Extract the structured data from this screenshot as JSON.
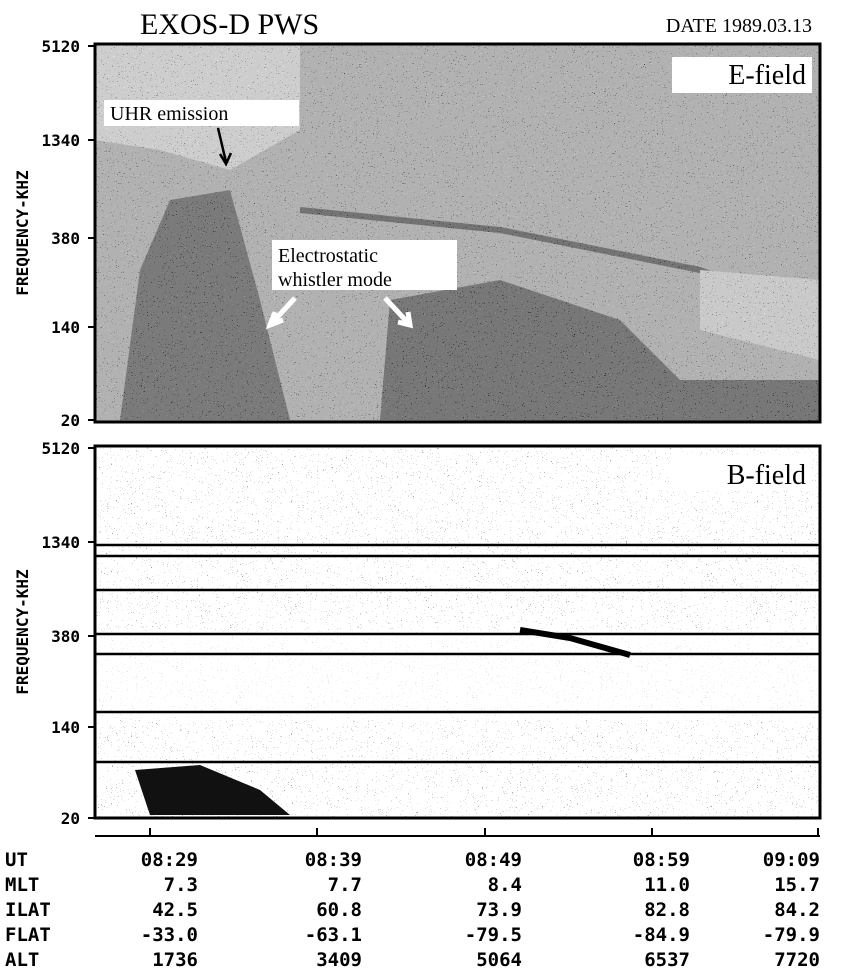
{
  "header": {
    "title": "EXOS-D  PWS",
    "date": "DATE 1989.03.13"
  },
  "panels": [
    {
      "label": "E-field",
      "axis_label": "FREQUENCY-KHZ",
      "ticks": [
        "5120",
        "1340",
        "380",
        "140",
        "20"
      ],
      "annotations": [
        "UHR emission",
        "Electrostatic",
        "whistler mode"
      ]
    },
    {
      "label": "B-field",
      "axis_label": "FREQUENCY-KHZ",
      "ticks": [
        "5120",
        "1340",
        "380",
        "140",
        "20"
      ]
    }
  ],
  "table": {
    "rows": [
      [
        "UT",
        "08:29",
        "08:39",
        "08:49",
        "08:59",
        "09:09"
      ],
      [
        "MLT",
        "7.3",
        "7.7",
        "8.4",
        "11.0",
        "15.7"
      ],
      [
        "ILAT",
        "42.5",
        "60.8",
        "73.9",
        "82.8",
        "84.2"
      ],
      [
        "FLAT",
        "-33.0",
        "-63.1",
        "-79.5",
        "-84.9",
        "-79.9"
      ],
      [
        "ALT",
        "1736",
        "3409",
        "5064",
        "6537",
        "7720"
      ]
    ]
  }
}
